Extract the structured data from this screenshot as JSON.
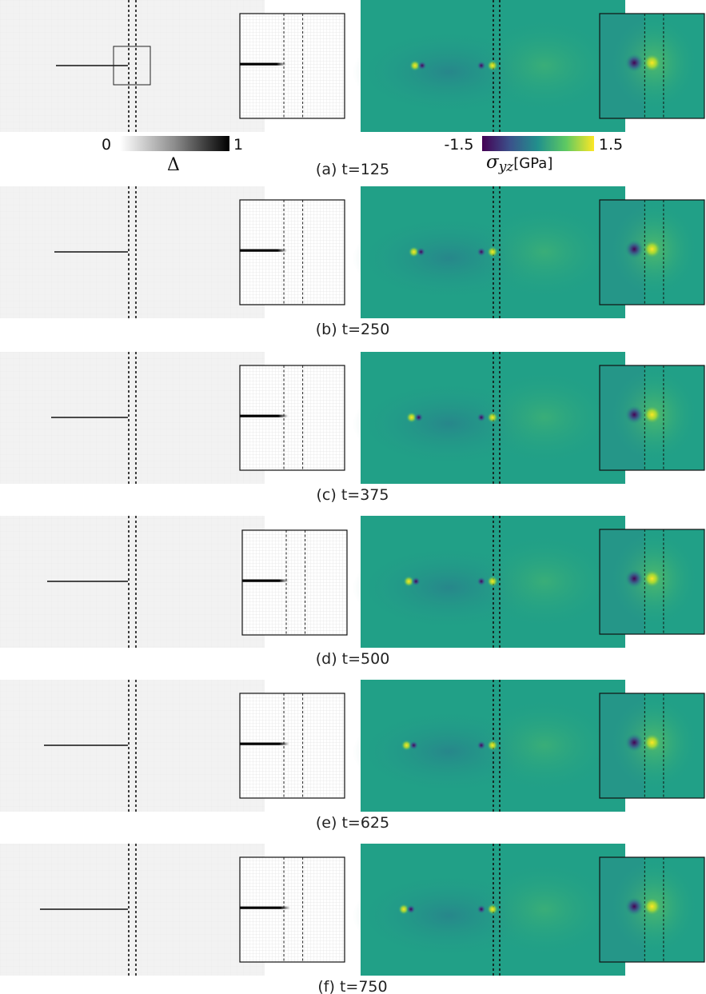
{
  "figure": {
    "panels": [
      {
        "caption": "(a) t=125",
        "crack_length": 90,
        "zoom_fill": 0.44
      },
      {
        "caption": "(b) t=250",
        "crack_length": 92,
        "zoom_fill": 0.45
      },
      {
        "caption": "(c) t=375",
        "crack_length": 96,
        "zoom_fill": 0.46
      },
      {
        "caption": "(d) t=500",
        "crack_length": 101,
        "zoom_fill": 0.44
      },
      {
        "caption": "(e) t=625",
        "crack_length": 105,
        "zoom_fill": 0.47
      },
      {
        "caption": "(f) t=750",
        "crack_length": 110,
        "zoom_fill": 0.48
      }
    ],
    "damage_colorbar": {
      "min_label": "0",
      "max_label": "1",
      "title": "Δ"
    },
    "stress_colorbar": {
      "min_label": "-1.5",
      "max_label": "1.5",
      "title_symbol": "σ",
      "title_sub": "yz",
      "title_unit": "[GPa]"
    },
    "colors": {
      "background_field": "#f2f2f2",
      "stress_field": "#21a087",
      "stress_low": "#440154",
      "stress_high": "#fde725"
    }
  }
}
